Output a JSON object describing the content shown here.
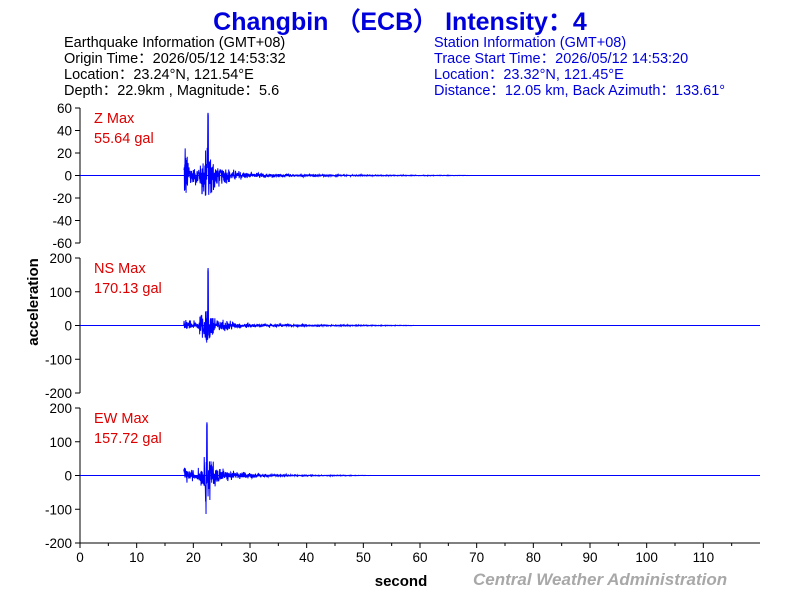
{
  "title": "Changbin （ECB） Intensity：4",
  "earthquake": {
    "heading": "Earthquake Information  (GMT+08)",
    "origin": "Origin Time：2026/05/12 14:53:32",
    "location": "Location：23.24°N, 121.54°E",
    "depth": "Depth：22.9km , Magnitude：5.6"
  },
  "station": {
    "heading": "Station Information  (GMT+08)",
    "trace_start": "Trace Start Time：2026/05/12 14:53:20",
    "location": "Location：23.32°N, 121.45°E",
    "distance": "Distance：12.05 km, Back Azimuth：133.61°"
  },
  "credit": "Central Weather Administration",
  "colors": {
    "trace": "#0000ff",
    "title": "#0000dd",
    "max_label": "#dd0000",
    "credit": "#a8a8a8"
  },
  "chart_data": {
    "type": "line",
    "xlabel": "second",
    "ylabel": "acceleration",
    "xlim": [
      0,
      120
    ],
    "x_ticks": [
      0,
      10,
      20,
      30,
      40,
      50,
      60,
      70,
      80,
      90,
      100,
      110
    ],
    "panels": [
      {
        "component": "Z",
        "max_label": "Z Max",
        "max_value": "55.64 gal",
        "ylim": [
          -60,
          60
        ],
        "y_ticks": [
          60,
          40,
          20,
          0,
          -20,
          -40,
          -60
        ],
        "signal": [
          [
            18.3,
            34
          ],
          [
            18.6,
            42
          ],
          [
            19.0,
            22
          ],
          [
            19.6,
            12
          ],
          [
            20.3,
            10
          ],
          [
            21.0,
            14
          ],
          [
            21.8,
            24
          ],
          [
            22.3,
            48
          ],
          [
            22.6,
            55.64
          ],
          [
            22.9,
            36
          ],
          [
            23.4,
            20
          ],
          [
            24.5,
            11
          ],
          [
            26,
            7
          ],
          [
            28,
            4.5
          ],
          [
            30,
            3
          ],
          [
            33,
            2
          ],
          [
            37,
            1.5
          ],
          [
            42,
            1.0
          ],
          [
            50,
            0.6
          ],
          [
            58,
            0.35
          ],
          [
            67,
            0.2
          ],
          [
            70,
            0
          ]
        ]
      },
      {
        "component": "NS",
        "max_label": "NS Max",
        "max_value": "170.13 gal",
        "ylim": [
          -200,
          200
        ],
        "y_ticks": [
          200,
          100,
          0,
          -100,
          -200
        ],
        "signal": [
          [
            18.3,
            14
          ],
          [
            18.8,
            18
          ],
          [
            19.6,
            14
          ],
          [
            20.5,
            16
          ],
          [
            21.3,
            30
          ],
          [
            22.0,
            58
          ],
          [
            22.3,
            100
          ],
          [
            22.6,
            170.13
          ],
          [
            22.9,
            80
          ],
          [
            23.5,
            38
          ],
          [
            24.5,
            24
          ],
          [
            26,
            16
          ],
          [
            28,
            11
          ],
          [
            31,
            7
          ],
          [
            35,
            5
          ],
          [
            40,
            3
          ],
          [
            46,
            2
          ],
          [
            52,
            1.5
          ],
          [
            57,
            0.8
          ],
          [
            60,
            0
          ]
        ]
      },
      {
        "component": "EW",
        "max_label": "EW Max",
        "max_value": "157.72 gal",
        "ylim": [
          -200,
          200
        ],
        "y_ticks": [
          200,
          100,
          0,
          -100,
          -200
        ],
        "signal": [
          [
            18.3,
            22
          ],
          [
            18.8,
            26
          ],
          [
            19.5,
            18
          ],
          [
            20.5,
            16
          ],
          [
            21.3,
            32
          ],
          [
            22.0,
            60
          ],
          [
            22.4,
            157.72
          ],
          [
            22.7,
            110
          ],
          [
            23.2,
            60
          ],
          [
            24.0,
            36
          ],
          [
            25.5,
            22
          ],
          [
            27.5,
            14
          ],
          [
            30,
            8
          ],
          [
            34,
            4
          ],
          [
            40,
            2
          ],
          [
            48,
            1
          ],
          [
            52,
            0
          ]
        ]
      }
    ]
  }
}
